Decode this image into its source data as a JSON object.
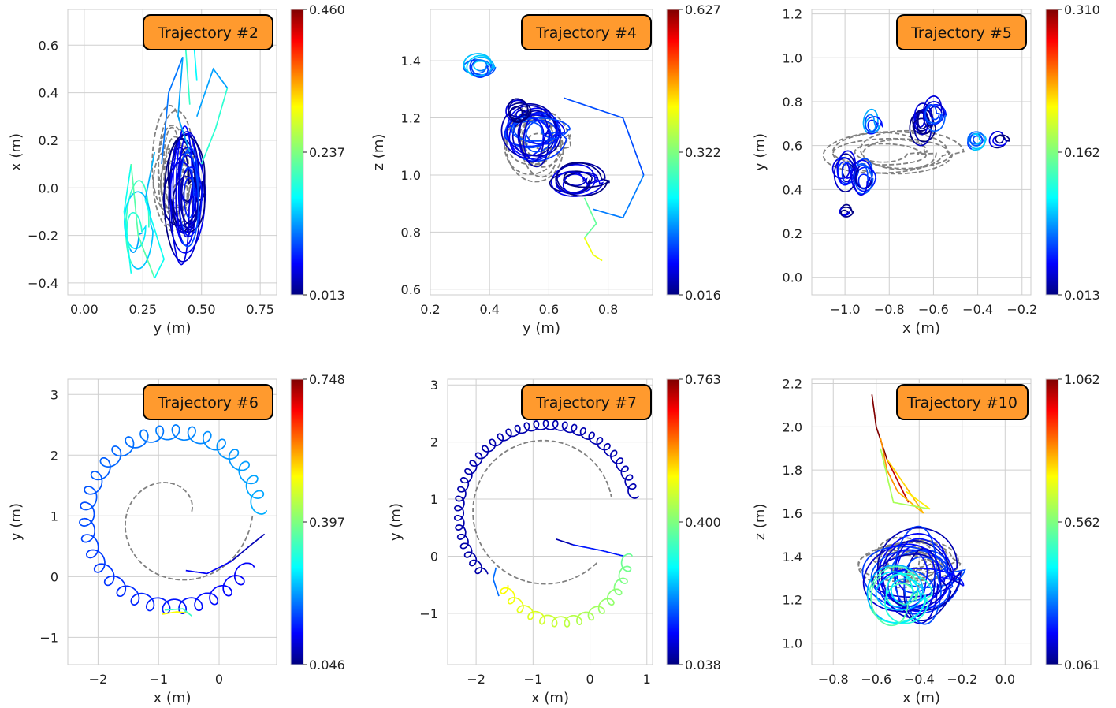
{
  "colormap": "jet",
  "reference_color": "#808080",
  "title_box_color": "#ff9a2e",
  "chart_data": [
    {
      "type": "line",
      "title": "Trajectory #2",
      "xlabel": "y (m)",
      "ylabel": "x (m)",
      "xlim": [
        -0.07,
        0.82
      ],
      "ylim": [
        -0.45,
        0.75
      ],
      "xticks": [
        0.0,
        0.25,
        0.5,
        0.75
      ],
      "xtick_labels": [
        "0.00",
        "0.25",
        "0.50",
        "0.75"
      ],
      "yticks": [
        -0.4,
        -0.2,
        0.0,
        0.2,
        0.4,
        0.6
      ],
      "ytick_labels": [
        "−0.4",
        "−0.2",
        "0.0",
        "0.2",
        "0.4",
        "0.6"
      ],
      "colorbar": {
        "min": 0.013,
        "mid": 0.237,
        "max": 0.46,
        "labels": [
          "0.013",
          "0.237",
          "0.460"
        ]
      },
      "grid": true,
      "reference": {
        "pattern": "loops",
        "cx": 0.38,
        "cy": 0.07,
        "rx": 0.08,
        "ry": 0.24,
        "n": 9
      },
      "segments": [
        {
          "pattern": "loops",
          "cx": 0.42,
          "cy": 0.0,
          "rx": 0.08,
          "ry": 0.27,
          "n": 12,
          "speed": 0.05
        },
        {
          "pattern": "loops",
          "cx": 0.45,
          "cy": -0.05,
          "rx": 0.05,
          "ry": 0.2,
          "n": 6,
          "speed": 0.12
        },
        {
          "pattern": "loops",
          "cx": 0.22,
          "cy": -0.15,
          "rx": 0.06,
          "ry": 0.2,
          "n": 3,
          "speed": 0.36
        },
        {
          "pattern": "path",
          "points": [
            [
              0.2,
              -0.36
            ],
            [
              0.17,
              -0.1
            ],
            [
              0.2,
              0.1
            ],
            [
              0.23,
              -0.2
            ],
            [
              0.3,
              -0.38
            ],
            [
              0.34,
              -0.3
            ],
            [
              0.26,
              -0.05
            ],
            [
              0.3,
              0.15
            ]
          ],
          "speed": 0.38
        },
        {
          "pattern": "path",
          "points": [
            [
              0.33,
              0.1
            ],
            [
              0.36,
              0.4
            ],
            [
              0.42,
              0.55
            ],
            [
              0.4,
              0.3
            ],
            [
              0.45,
              0.15
            ]
          ],
          "speed": 0.3
        },
        {
          "pattern": "path",
          "points": [
            [
              0.48,
              0.3
            ],
            [
              0.55,
              0.5
            ],
            [
              0.61,
              0.42
            ],
            [
              0.56,
              0.25
            ],
            [
              0.5,
              0.1
            ]
          ],
          "speed": 0.36
        },
        {
          "pattern": "path",
          "points": [
            [
              0.45,
              0.35
            ],
            [
              0.43,
              0.62
            ],
            [
              0.46,
              0.7
            ],
            [
              0.48,
              0.45
            ]
          ],
          "speed": 0.45
        }
      ]
    },
    {
      "type": "line",
      "title": "Trajectory #4",
      "xlabel": "y (m)",
      "ylabel": "z (m)",
      "xlim": [
        0.2,
        0.95
      ],
      "ylim": [
        0.58,
        1.58
      ],
      "xticks": [
        0.2,
        0.4,
        0.6,
        0.8
      ],
      "xtick_labels": [
        "0.2",
        "0.4",
        "0.6",
        "0.8"
      ],
      "yticks": [
        0.6,
        0.8,
        1.0,
        1.2,
        1.4
      ],
      "ytick_labels": [
        "0.6",
        "0.8",
        "1.0",
        "1.2",
        "1.4"
      ],
      "colorbar": {
        "min": 0.016,
        "mid": 0.322,
        "max": 0.627,
        "labels": [
          "0.016",
          "0.322",
          "0.627"
        ]
      },
      "grid": true,
      "reference": {
        "pattern": "loops",
        "cx": 0.56,
        "cy": 1.12,
        "rx": 0.1,
        "ry": 0.13,
        "n": 8
      },
      "segments": [
        {
          "pattern": "loops",
          "cx": 0.55,
          "cy": 1.15,
          "rx": 0.1,
          "ry": 0.1,
          "n": 14,
          "speed": 0.12
        },
        {
          "pattern": "loops",
          "cx": 0.7,
          "cy": 0.98,
          "rx": 0.09,
          "ry": 0.06,
          "n": 8,
          "speed": 0.04
        },
        {
          "pattern": "loops",
          "cx": 0.36,
          "cy": 1.38,
          "rx": 0.05,
          "ry": 0.04,
          "n": 6,
          "speed": 0.26
        },
        {
          "pattern": "loops",
          "cx": 0.5,
          "cy": 1.22,
          "rx": 0.04,
          "ry": 0.04,
          "n": 6,
          "speed": 0.02
        },
        {
          "pattern": "path",
          "points": [
            [
              0.65,
              1.27
            ],
            [
              0.85,
              1.2
            ],
            [
              0.92,
              1.0
            ],
            [
              0.85,
              0.85
            ],
            [
              0.75,
              0.88
            ]
          ],
          "speed": 0.26
        },
        {
          "pattern": "path",
          "points": [
            [
              0.72,
              0.92
            ],
            [
              0.76,
              0.83
            ],
            [
              0.72,
              0.78
            ],
            [
              0.75,
              0.72
            ],
            [
              0.78,
              0.7
            ]
          ],
          "speed": 0.55
        }
      ]
    },
    {
      "type": "line",
      "title": "Trajectory #5",
      "xlabel": "x (m)",
      "ylabel": "y (m)",
      "xlim": [
        -1.15,
        -0.16
      ],
      "ylim": [
        -0.08,
        1.22
      ],
      "xticks": [
        -1.0,
        -0.8,
        -0.6,
        -0.4,
        -0.2
      ],
      "xtick_labels": [
        "−1.0",
        "−0.8",
        "−0.6",
        "−0.4",
        "−0.2"
      ],
      "yticks": [
        0.0,
        0.2,
        0.4,
        0.6,
        0.8,
        1.0,
        1.2
      ],
      "ytick_labels": [
        "0.0",
        "0.2",
        "0.4",
        "0.6",
        "0.8",
        "1.0",
        "1.2"
      ],
      "colorbar": {
        "min": 0.013,
        "mid": 0.162,
        "max": 0.31,
        "labels": [
          "0.013",
          "0.162",
          "0.310"
        ]
      },
      "grid": true,
      "reference": {
        "pattern": "loops",
        "cx": -0.78,
        "cy": 0.58,
        "rx": 0.28,
        "ry": 0.1,
        "n": 6
      },
      "segments": [
        {
          "pattern": "loops",
          "cx": -1.0,
          "cy": 0.48,
          "rx": 0.05,
          "ry": 0.08,
          "n": 7,
          "speed": 0.1
        },
        {
          "pattern": "loops",
          "cx": -0.92,
          "cy": 0.45,
          "rx": 0.05,
          "ry": 0.08,
          "n": 6,
          "speed": 0.13
        },
        {
          "pattern": "loops",
          "cx": -0.88,
          "cy": 0.7,
          "rx": 0.04,
          "ry": 0.06,
          "n": 4,
          "speed": 0.22
        },
        {
          "pattern": "loops",
          "cx": -0.65,
          "cy": 0.7,
          "rx": 0.05,
          "ry": 0.08,
          "n": 8,
          "speed": 0.03
        },
        {
          "pattern": "loops",
          "cx": -0.6,
          "cy": 0.75,
          "rx": 0.05,
          "ry": 0.07,
          "n": 5,
          "speed": 0.15
        },
        {
          "pattern": "loops",
          "cx": -0.4,
          "cy": 0.62,
          "rx": 0.04,
          "ry": 0.04,
          "n": 5,
          "speed": 0.25
        },
        {
          "pattern": "loops",
          "cx": -1.0,
          "cy": 0.3,
          "rx": 0.03,
          "ry": 0.03,
          "n": 3,
          "speed": 0.03
        },
        {
          "pattern": "loops",
          "cx": -0.3,
          "cy": 0.63,
          "rx": 0.04,
          "ry": 0.04,
          "n": 3,
          "speed": 0.04
        }
      ]
    },
    {
      "type": "line",
      "title": "Trajectory #6",
      "xlabel": "x (m)",
      "ylabel": "y (m)",
      "xlim": [
        -2.5,
        0.95
      ],
      "ylim": [
        -1.45,
        3.25
      ],
      "xticks": [
        -2,
        -1,
        0
      ],
      "xtick_labels": [
        "−2",
        "−1",
        "0"
      ],
      "yticks": [
        -1,
        0,
        1,
        2,
        3
      ],
      "ytick_labels": [
        "−1",
        "0",
        "1",
        "2",
        "3"
      ],
      "colorbar": {
        "min": 0.046,
        "mid": 0.397,
        "max": 0.748,
        "labels": [
          "0.046",
          "0.397",
          "0.748"
        ]
      },
      "grid": true,
      "reference": {
        "pattern": "spiral",
        "cx": -0.75,
        "cy": 1.0,
        "r0": 1.3,
        "r1": 0.3,
        "a0": 6.28,
        "a1": 0.2
      },
      "segments": [
        {
          "pattern": "spiral",
          "cx": -0.75,
          "cy": 0.95,
          "r0": 1.45,
          "r1": 1.42,
          "a0": 5.7,
          "a1": 0.1,
          "curls": 30,
          "curl_r": 0.12,
          "speed0": 0.12,
          "speed1": 0.3
        },
        {
          "pattern": "path",
          "points": [
            [
              -0.55,
              0.1
            ],
            [
              -0.2,
              0.05
            ],
            [
              0.2,
              0.25
            ],
            [
              0.5,
              0.5
            ],
            [
              0.75,
              0.7
            ]
          ],
          "speed": 0.05
        },
        {
          "pattern": "path",
          "points": [
            [
              -0.95,
              -0.62
            ],
            [
              -0.7,
              -0.58
            ],
            [
              -0.5,
              -0.6
            ]
          ],
          "speed": 0.55
        },
        {
          "pattern": "path",
          "points": [
            [
              -0.9,
              -0.55
            ],
            [
              -0.6,
              -0.53
            ],
            [
              -0.45,
              -0.65
            ]
          ],
          "speed": 0.42
        }
      ]
    },
    {
      "type": "line",
      "title": "Trajectory #7",
      "xlabel": "x (m)",
      "ylabel": "y (m)",
      "xlim": [
        -2.5,
        1.1
      ],
      "ylim": [
        -1.9,
        3.1
      ],
      "xticks": [
        -2,
        -1,
        0,
        1
      ],
      "xtick_labels": [
        "−2",
        "−1",
        "0",
        "1"
      ],
      "yticks": [
        -1,
        0,
        1,
        2,
        3
      ],
      "ytick_labels": [
        "−1",
        "0",
        "1",
        "2",
        "3"
      ],
      "colorbar": {
        "min": 0.038,
        "mid": 0.4,
        "max": 0.763,
        "labels": [
          "0.038",
          "0.400",
          "0.763"
        ]
      },
      "grid": true,
      "reference": {
        "pattern": "spiral",
        "cx": -0.8,
        "cy": 0.8,
        "r0": 1.3,
        "r1": 1.2,
        "a0": 5.5,
        "a1": 0.2
      },
      "segments": [
        {
          "pattern": "spiral",
          "cx": -0.75,
          "cy": 0.75,
          "r0": 1.55,
          "r1": 1.55,
          "a0": 3.9,
          "a1": 0.2,
          "curls": 34,
          "curl_r": 0.08,
          "speed0": 0.04,
          "speed1": 0.05
        },
        {
          "pattern": "path",
          "points": [
            [
              0.6,
              0.0
            ],
            [
              0.2,
              0.1
            ],
            [
              -0.3,
              0.2
            ],
            [
              -0.6,
              0.3
            ]
          ],
          "speed": 0.08
        },
        {
          "pattern": "spiral",
          "cx": -0.5,
          "cy": 0.0,
          "r0": 1.15,
          "r1": 1.15,
          "a0": 6.28,
          "a1": 3.6,
          "curls": 14,
          "curl_r": 0.09,
          "speed0": 0.48,
          "speed1": 0.63
        },
        {
          "pattern": "path",
          "points": [
            [
              -1.6,
              -0.7
            ],
            [
              -1.7,
              -0.4
            ],
            [
              -1.65,
              -0.2
            ]
          ],
          "speed": 0.22
        }
      ]
    },
    {
      "type": "line",
      "title": "Trajectory #10",
      "xlabel": "x (m)",
      "ylabel": "z (m)",
      "xlim": [
        -0.9,
        0.12
      ],
      "ylim": [
        0.9,
        2.22
      ],
      "xticks": [
        -0.8,
        -0.6,
        -0.4,
        -0.2,
        0.0
      ],
      "xtick_labels": [
        "−0.8",
        "−0.6",
        "−0.4",
        "−0.2",
        "0.0"
      ],
      "yticks": [
        1.0,
        1.2,
        1.4,
        1.6,
        1.8,
        2.0,
        2.2
      ],
      "ytick_labels": [
        "1.0",
        "1.2",
        "1.4",
        "1.6",
        "1.8",
        "2.0",
        "2.2"
      ],
      "colorbar": {
        "min": 0.061,
        "mid": 0.562,
        "max": 1.062,
        "labels": [
          "0.061",
          "0.562",
          "1.062"
        ]
      },
      "grid": true,
      "reference": {
        "pattern": "loops",
        "cx": -0.44,
        "cy": 1.38,
        "rx": 0.2,
        "ry": 0.1,
        "n": 10
      },
      "segments": [
        {
          "pattern": "loops",
          "cx": -0.42,
          "cy": 1.3,
          "rx": 0.2,
          "ry": 0.2,
          "n": 16,
          "speed": 0.12
        },
        {
          "pattern": "loops",
          "cx": -0.5,
          "cy": 1.22,
          "rx": 0.14,
          "ry": 0.14,
          "n": 7,
          "speed": 0.38
        },
        {
          "pattern": "path",
          "points": [
            [
              -0.62,
              2.15
            ],
            [
              -0.6,
              2.0
            ],
            [
              -0.55,
              1.85
            ],
            [
              -0.5,
              1.75
            ],
            [
              -0.45,
              1.65
            ]
          ],
          "speed": 1.0
        },
        {
          "pattern": "path",
          "points": [
            [
              -0.58,
              1.95
            ],
            [
              -0.55,
              1.8
            ],
            [
              -0.5,
              1.7
            ],
            [
              -0.38,
              1.6
            ],
            [
              -0.46,
              1.72
            ],
            [
              -0.55,
              1.85
            ]
          ],
          "speed": 0.72
        },
        {
          "pattern": "path",
          "points": [
            [
              -0.58,
              1.9
            ],
            [
              -0.52,
              1.65
            ],
            [
              -0.35,
              1.62
            ],
            [
              -0.46,
              1.7
            ]
          ],
          "speed": 0.6
        }
      ]
    }
  ]
}
